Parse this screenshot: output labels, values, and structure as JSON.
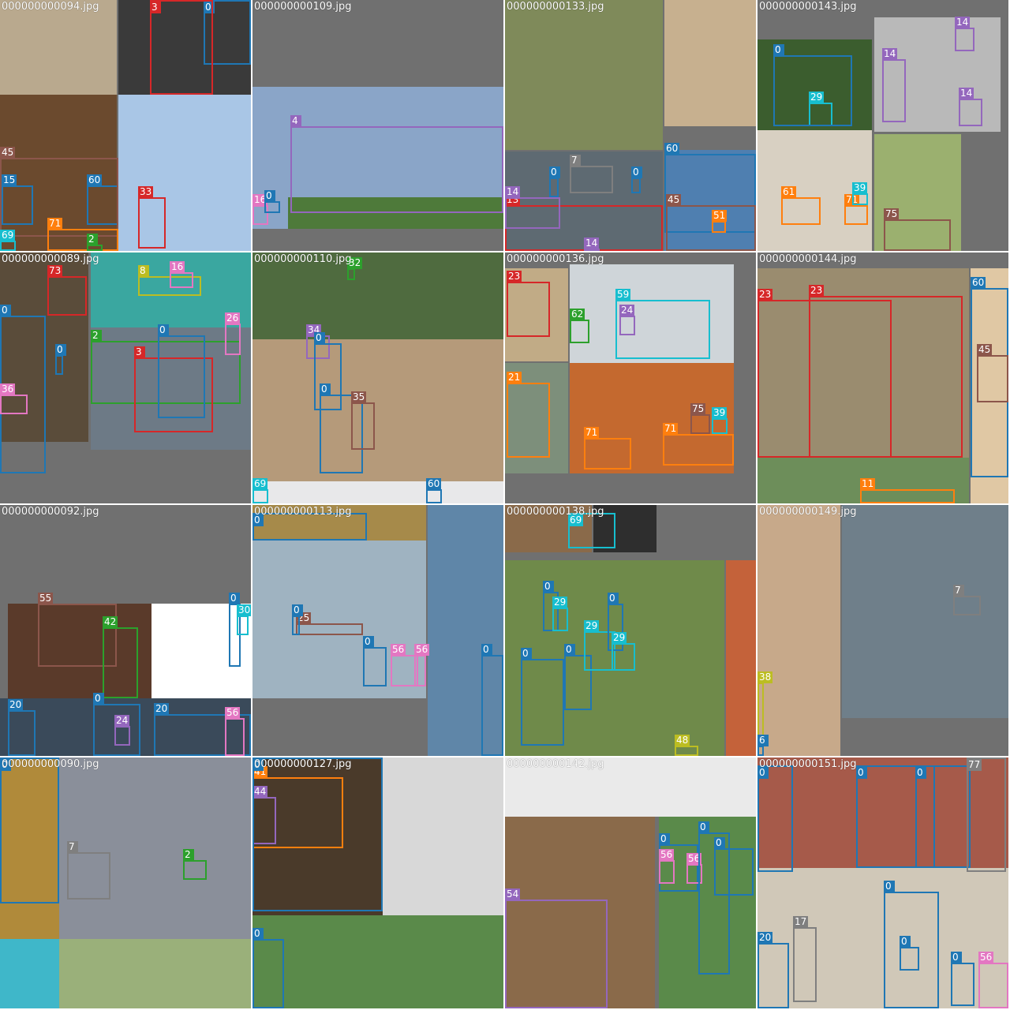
{
  "class_colors": {
    "0": "#1f77b4",
    "2": "#2ca02c",
    "3": "#d62728",
    "4": "#9467bd",
    "7": "#7f7f7f",
    "8": "#bcbd22",
    "11": "#ff7f0e",
    "13": "#d62728",
    "14": "#9467bd",
    "16": "#e377c2",
    "17": "#7f7f7f",
    "20": "#1f77b4",
    "21": "#ff7f0e",
    "23": "#d62728",
    "24": "#9467bd",
    "25": "#8c564b",
    "26": "#e377c2",
    "29": "#17becf",
    "30": "#17becf",
    "32": "#2ca02c",
    "33": "#d62728",
    "34": "#9467bd",
    "35": "#8c564b",
    "36": "#e377c2",
    "38": "#bcbd22",
    "39": "#17becf",
    "41": "#ff7f0e",
    "42": "#2ca02c",
    "44": "#9467bd",
    "45": "#8c564b",
    "48": "#bcbd22",
    "51": "#ff7f0e",
    "54": "#9467bd",
    "55": "#8c564b",
    "56": "#e377c2",
    "59": "#17becf",
    "60": "#1f77b4",
    "61": "#ff7f0e",
    "62": "#2ca02c",
    "67": "#7f7f7f",
    "69": "#17becf",
    "71": "#ff7f0e",
    "73": "#d62728",
    "75": "#8c564b",
    "77": "#7f7f7f"
  },
  "tiles": [
    {
      "title": "000000000094.jpg",
      "photos": [
        [
          "#b9a98e",
          0,
          0,
          148,
          120
        ],
        [
          "#3a3a3a",
          150,
          0,
          168,
          120
        ],
        [
          "#6b4a2e",
          0,
          120,
          148,
          198
        ],
        [
          "#a9c6e6",
          150,
          120,
          168,
          198
        ]
      ],
      "boxes": [
        [
          "0",
          258,
          0,
          60,
          82
        ],
        [
          "3",
          190,
          0,
          80,
          120
        ],
        [
          "60",
          110,
          235,
          40,
          50
        ],
        [
          "45",
          0,
          200,
          150,
          100
        ],
        [
          "15",
          2,
          235,
          40,
          50
        ],
        [
          "71",
          60,
          290,
          90,
          28
        ],
        [
          "33",
          175,
          250,
          35,
          65
        ],
        [
          "69",
          0,
          305,
          20,
          13
        ],
        [
          "2",
          110,
          310,
          20,
          8
        ]
      ]
    },
    {
      "title": "000000000109.jpg",
      "photos": [
        [
          "#8aa5c8",
          0,
          110,
          318,
          180
        ],
        [
          "#4e7a3a",
          45,
          250,
          273,
          40
        ]
      ],
      "boxes": [
        [
          "4",
          48,
          160,
          270,
          110
        ],
        [
          "16",
          0,
          260,
          20,
          25
        ],
        [
          "0",
          15,
          255,
          20,
          15
        ]
      ]
    },
    {
      "title": "000000000133.jpg",
      "photos": [
        [
          "#7f8a5a",
          0,
          0,
          200,
          190
        ],
        [
          "#c7b08f",
          202,
          0,
          116,
          160
        ],
        [
          "#5e6a72",
          0,
          192,
          200,
          126
        ],
        [
          "#4f7fb0",
          202,
          190,
          116,
          128
        ]
      ],
      "boxes": [
        [
          "60",
          202,
          195,
          116,
          100
        ],
        [
          "45",
          204,
          260,
          114,
          58
        ],
        [
          "13",
          0,
          260,
          200,
          58
        ],
        [
          "14",
          0,
          250,
          70,
          40
        ],
        [
          "7",
          82,
          210,
          55,
          35
        ],
        [
          "0",
          160,
          225,
          12,
          20
        ],
        [
          "51",
          262,
          280,
          18,
          15
        ],
        [
          "14",
          100,
          315,
          20,
          3
        ],
        [
          "0",
          56,
          225,
          12,
          25
        ]
      ]
    },
    {
      "title": "000000000143.jpg",
      "photos": [
        [
          "#3b5d2e",
          0,
          50,
          145,
          115
        ],
        [
          "#b9b9b9",
          148,
          22,
          160,
          145
        ],
        [
          "#d8d0c2",
          0,
          165,
          145,
          153
        ],
        [
          "#9bb06f",
          148,
          170,
          110,
          148
        ]
      ],
      "boxes": [
        [
          "14",
          158,
          75,
          30,
          80
        ],
        [
          "14",
          250,
          35,
          25,
          30
        ],
        [
          "14",
          255,
          125,
          30,
          35
        ],
        [
          "29",
          65,
          130,
          30,
          30
        ],
        [
          "0",
          20,
          70,
          100,
          90
        ],
        [
          "61",
          30,
          250,
          50,
          35
        ],
        [
          "71",
          110,
          260,
          30,
          25
        ],
        [
          "39",
          120,
          245,
          20,
          15
        ],
        [
          "75",
          160,
          278,
          85,
          40
        ]
      ]
    },
    {
      "title": "000000000089.jpg",
      "photos": [
        [
          "#5a4c3a",
          0,
          0,
          112,
          240
        ],
        [
          "#3aa7a0",
          115,
          0,
          203,
          95
        ],
        [
          "#6d7a86",
          115,
          95,
          203,
          155
        ]
      ],
      "boxes": [
        [
          "73",
          60,
          30,
          50,
          50
        ],
        [
          "8",
          175,
          30,
          80,
          25
        ],
        [
          "16",
          215,
          25,
          30,
          20
        ],
        [
          "0",
          0,
          80,
          58,
          200
        ],
        [
          "2",
          115,
          112,
          190,
          80
        ],
        [
          "3",
          170,
          133,
          100,
          95
        ],
        [
          "0",
          200,
          105,
          60,
          105
        ],
        [
          "26",
          285,
          90,
          20,
          40
        ],
        [
          "36",
          0,
          180,
          35,
          25
        ],
        [
          "0",
          70,
          130,
          10,
          25
        ]
      ]
    },
    {
      "title": "000000000110.jpg",
      "photos": [
        [
          "#4f6b3f",
          0,
          0,
          318,
          110
        ],
        [
          "#b59a7a",
          0,
          110,
          318,
          180
        ],
        [
          "#e8e8ea",
          0,
          290,
          318,
          28
        ]
      ],
      "boxes": [
        [
          "32",
          120,
          20,
          10,
          15
        ],
        [
          "34",
          68,
          105,
          30,
          30
        ],
        [
          "0",
          78,
          115,
          35,
          85
        ],
        [
          "0",
          85,
          180,
          55,
          100
        ],
        [
          "35",
          125,
          190,
          30,
          60
        ],
        [
          "69",
          0,
          300,
          20,
          18
        ],
        [
          "60",
          220,
          300,
          20,
          18
        ]
      ]
    },
    {
      "title": "000000000136.jpg",
      "photos": [
        [
          "#c1ab86",
          0,
          20,
          80,
          118
        ],
        [
          "#cfd5d9",
          82,
          15,
          208,
          125
        ],
        [
          "#7d8f7b",
          0,
          140,
          80,
          140
        ],
        [
          "#c4692f",
          82,
          140,
          208,
          140
        ]
      ],
      "boxes": [
        [
          "23",
          2,
          37,
          55,
          70
        ],
        [
          "62",
          82,
          85,
          25,
          30
        ],
        [
          "59",
          140,
          60,
          120,
          75
        ],
        [
          "24",
          145,
          80,
          20,
          25
        ],
        [
          "21",
          2,
          165,
          55,
          95
        ],
        [
          "75",
          235,
          205,
          25,
          25
        ],
        [
          "71",
          100,
          235,
          60,
          40
        ],
        [
          "71",
          200,
          230,
          90,
          40
        ],
        [
          "39",
          262,
          210,
          20,
          20
        ]
      ]
    },
    {
      "title": "000000000144.jpg",
      "photos": [
        [
          "#9a8c6f",
          0,
          20,
          268,
          240
        ],
        [
          "#6d8e5a",
          0,
          260,
          268,
          58
        ],
        [
          "#e0c8a4",
          270,
          20,
          48,
          298
        ]
      ],
      "boxes": [
        [
          "23",
          0,
          60,
          170,
          200
        ],
        [
          "23",
          65,
          55,
          195,
          205
        ],
        [
          "60",
          270,
          45,
          48,
          240
        ],
        [
          "45",
          278,
          130,
          40,
          60
        ],
        [
          "11",
          130,
          300,
          120,
          18
        ]
      ]
    },
    {
      "title": "000000000092.jpg",
      "photos": [
        [
          "#5a3a2a",
          10,
          125,
          182,
          120
        ],
        [
          "#ffffff",
          192,
          125,
          126,
          120
        ],
        [
          "#3a4a5a",
          0,
          245,
          318,
          73
        ]
      ],
      "boxes": [
        [
          "55",
          48,
          125,
          100,
          80
        ],
        [
          "42",
          130,
          155,
          45,
          90
        ],
        [
          "0",
          290,
          125,
          15,
          80
        ],
        [
          "30",
          300,
          140,
          15,
          25
        ],
        [
          "20",
          10,
          260,
          35,
          58
        ],
        [
          "0",
          118,
          252,
          60,
          66
        ],
        [
          "24",
          145,
          280,
          20,
          25
        ],
        [
          "20",
          195,
          265,
          123,
          53
        ],
        [
          "56",
          285,
          270,
          25,
          48
        ]
      ]
    },
    {
      "title": "000000000113.jpg",
      "photos": [
        [
          "#a68a4a",
          0,
          0,
          220,
          45
        ],
        [
          "#9fb3c1",
          0,
          45,
          220,
          200
        ],
        [
          "#5f86a8",
          222,
          0,
          96,
          318
        ]
      ],
      "boxes": [
        [
          "0",
          0,
          10,
          145,
          35
        ],
        [
          "25",
          55,
          150,
          85,
          15
        ],
        [
          "0",
          140,
          180,
          30,
          50
        ],
        [
          "56",
          175,
          190,
          35,
          40
        ],
        [
          "56",
          205,
          190,
          15,
          40
        ],
        [
          "0",
          290,
          190,
          28,
          128
        ],
        [
          "0",
          50,
          140,
          10,
          25
        ]
      ]
    },
    {
      "title": "000000000138.jpg",
      "photos": [
        [
          "#8a6a4a",
          0,
          0,
          110,
          60
        ],
        [
          "#2e2e2e",
          112,
          0,
          80,
          60
        ],
        [
          "#6f8a4a",
          0,
          70,
          278,
          248
        ],
        [
          "#c4623a",
          280,
          70,
          38,
          248
        ]
      ],
      "boxes": [
        [
          "69",
          80,
          10,
          60,
          45
        ],
        [
          "0",
          48,
          110,
          20,
          50
        ],
        [
          "29",
          60,
          130,
          20,
          30
        ],
        [
          "0",
          20,
          195,
          55,
          110
        ],
        [
          "0",
          75,
          190,
          35,
          70
        ],
        [
          "29",
          100,
          160,
          40,
          50
        ],
        [
          "0",
          130,
          125,
          20,
          60
        ],
        [
          "29",
          135,
          175,
          30,
          35
        ],
        [
          "48",
          215,
          305,
          30,
          13
        ]
      ]
    },
    {
      "title": "000000000149.jpg",
      "photos": [
        [
          "#c7a98a",
          0,
          0,
          105,
          318
        ],
        [
          "#6f7f8a",
          107,
          0,
          211,
          270
        ]
      ],
      "boxes": [
        [
          "7",
          248,
          115,
          35,
          25
        ],
        [
          "38",
          0,
          225,
          8,
          93
        ],
        [
          "6",
          0,
          305,
          8,
          13
        ]
      ]
    },
    {
      "title": "000000000090.jpg",
      "photos": [
        [
          "#b08a3a",
          0,
          0,
          75,
          230
        ],
        [
          "#8a8f9a",
          75,
          0,
          243,
          230
        ],
        [
          "#3fb7c9",
          0,
          230,
          75,
          88
        ],
        [
          "#9ab07a",
          75,
          230,
          243,
          88
        ]
      ],
      "boxes": [
        [
          "0",
          0,
          0,
          75,
          185
        ],
        [
          "7",
          85,
          120,
          55,
          60
        ],
        [
          "2",
          232,
          130,
          30,
          25
        ]
      ]
    },
    {
      "title": "000000000127.jpg",
      "photos": [
        [
          "#4a3a2a",
          0,
          0,
          165,
          200
        ],
        [
          "#d8d8d8",
          165,
          0,
          153,
          200
        ],
        [
          "#5a8a4a",
          0,
          200,
          318,
          118
        ]
      ],
      "boxes": [
        [
          "41",
          0,
          25,
          115,
          90
        ],
        [
          "44",
          0,
          50,
          30,
          60
        ],
        [
          "0",
          0,
          230,
          40,
          88
        ],
        [
          "0",
          0,
          0,
          165,
          195
        ]
      ]
    },
    {
      "title": "000000000142.jpg",
      "photos": [
        [
          "#eaeaea",
          0,
          0,
          318,
          75
        ],
        [
          "#8a6a4a",
          0,
          75,
          190,
          243
        ],
        [
          "#5a8a4a",
          195,
          75,
          123,
          243
        ]
      ],
      "boxes": [
        [
          "54",
          0,
          180,
          130,
          138
        ],
        [
          "0",
          195,
          110,
          50,
          60
        ],
        [
          "56",
          195,
          130,
          20,
          30
        ],
        [
          "56",
          230,
          135,
          20,
          25
        ],
        [
          "0",
          245,
          95,
          40,
          180
        ],
        [
          "0",
          265,
          115,
          50,
          60
        ]
      ]
    },
    {
      "title": "000000000151.jpg",
      "photos": [
        [
          "#a65a4a",
          0,
          0,
          318,
          140
        ],
        [
          "#d0c8b8",
          0,
          140,
          318,
          178
        ]
      ],
      "boxes": [
        [
          "0",
          0,
          10,
          45,
          135
        ],
        [
          "0",
          125,
          10,
          100,
          130
        ],
        [
          "0",
          200,
          10,
          70,
          130
        ],
        [
          "77",
          265,
          0,
          50,
          145
        ],
        [
          "0",
          160,
          170,
          70,
          148
        ],
        [
          "0",
          180,
          240,
          25,
          30
        ],
        [
          "17",
          45,
          215,
          30,
          95
        ],
        [
          "20",
          0,
          235,
          40,
          83
        ],
        [
          "56",
          280,
          260,
          38,
          58
        ],
        [
          "0",
          245,
          260,
          30,
          55
        ]
      ]
    }
  ]
}
